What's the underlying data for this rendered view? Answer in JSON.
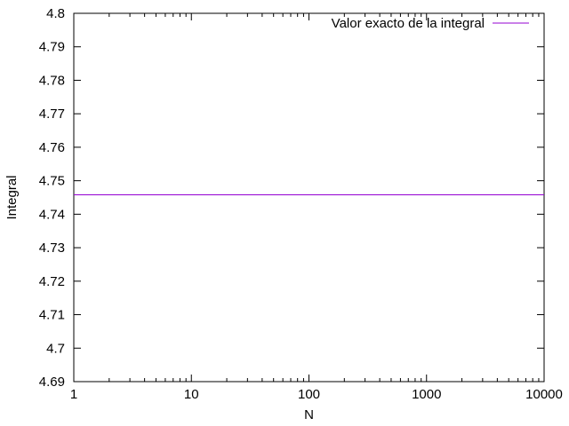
{
  "chart_data": {
    "type": "line",
    "xlabel": "N",
    "ylabel": "Integral",
    "x_scale": "log",
    "xlim": [
      1,
      10000
    ],
    "ylim": [
      4.69,
      4.8
    ],
    "x_ticks": [
      1,
      10,
      100,
      1000,
      10000
    ],
    "x_tick_labels": [
      "1",
      "10",
      "100",
      "1000",
      "10000"
    ],
    "y_ticks": [
      4.69,
      4.7,
      4.71,
      4.72,
      4.73,
      4.74,
      4.75,
      4.76,
      4.77,
      4.78,
      4.79,
      4.8
    ],
    "y_tick_labels": [
      "4.69",
      "4.7",
      "4.71",
      "4.72",
      "4.73",
      "4.74",
      "4.75",
      "4.76",
      "4.77",
      "4.78",
      "4.79",
      "4.8"
    ],
    "grid": false,
    "legend_position": "top-right",
    "series": [
      {
        "name": "Valor exacto de la integral",
        "color": "#9400d3",
        "x": [
          1,
          10000
        ],
        "y": [
          4.7458,
          4.7458
        ]
      }
    ]
  }
}
